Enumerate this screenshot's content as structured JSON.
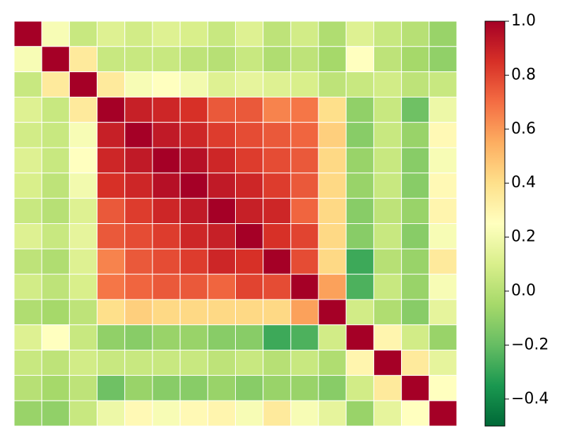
{
  "chart_data": {
    "type": "heatmap",
    "values": [
      [
        1,
        0.22,
        0.05,
        0.12,
        0.08,
        0.12,
        0.1,
        0.05,
        0.12,
        0.02,
        0.08,
        -0.02,
        0.12,
        0.05,
        0.0,
        -0.08
      ],
      [
        0.22,
        1,
        0.35,
        0.05,
        0.05,
        0.05,
        0.02,
        0.0,
        0.05,
        -0.02,
        0.02,
        -0.05,
        0.25,
        0.02,
        -0.05,
        -0.1
      ],
      [
        0.05,
        0.35,
        1,
        0.35,
        0.22,
        0.25,
        0.2,
        0.12,
        0.15,
        0.12,
        0.1,
        0.02,
        0.05,
        0.08,
        0.02,
        0.05
      ],
      [
        0.12,
        0.05,
        0.35,
        1,
        0.9,
        0.88,
        0.85,
        0.75,
        0.75,
        0.65,
        0.68,
        0.4,
        -0.1,
        0.05,
        -0.18,
        0.18
      ],
      [
        0.08,
        0.05,
        0.22,
        0.9,
        1,
        0.92,
        0.88,
        0.82,
        0.78,
        0.75,
        0.72,
        0.45,
        -0.12,
        0.05,
        -0.08,
        0.28
      ],
      [
        0.12,
        0.05,
        0.25,
        0.88,
        0.92,
        1,
        0.95,
        0.88,
        0.82,
        0.78,
        0.75,
        0.42,
        -0.08,
        0.05,
        -0.12,
        0.22
      ],
      [
        0.1,
        0.02,
        0.2,
        0.85,
        0.88,
        0.95,
        1,
        0.92,
        0.88,
        0.82,
        0.75,
        0.42,
        -0.08,
        0.05,
        -0.12,
        0.28
      ],
      [
        0.05,
        0.0,
        0.12,
        0.75,
        0.82,
        0.88,
        0.92,
        1,
        0.9,
        0.88,
        0.72,
        0.42,
        -0.12,
        0.02,
        -0.08,
        0.3
      ],
      [
        0.12,
        0.05,
        0.15,
        0.75,
        0.78,
        0.82,
        0.88,
        0.9,
        1,
        0.85,
        0.8,
        0.42,
        -0.12,
        0.05,
        -0.12,
        0.22
      ],
      [
        0.02,
        -0.02,
        0.12,
        0.65,
        0.75,
        0.78,
        0.82,
        0.88,
        0.85,
        1,
        0.78,
        0.42,
        -0.28,
        0.0,
        -0.08,
        0.35
      ],
      [
        0.08,
        0.02,
        0.1,
        0.68,
        0.72,
        0.75,
        0.75,
        0.72,
        0.8,
        0.78,
        1,
        0.58,
        -0.25,
        0.05,
        -0.08,
        0.22
      ],
      [
        -0.02,
        -0.05,
        0.02,
        0.4,
        0.45,
        0.42,
        0.42,
        0.42,
        0.42,
        0.42,
        0.58,
        1,
        0.08,
        -0.02,
        -0.12,
        0.15
      ],
      [
        0.12,
        0.25,
        0.05,
        -0.1,
        -0.12,
        -0.08,
        -0.08,
        -0.12,
        -0.12,
        -0.28,
        -0.25,
        0.08,
        1,
        0.3,
        0.08,
        -0.08
      ],
      [
        0.05,
        0.02,
        0.08,
        0.05,
        0.05,
        0.05,
        0.05,
        0.02,
        0.05,
        0.0,
        0.05,
        -0.02,
        0.3,
        1,
        0.35,
        0.15
      ],
      [
        0.0,
        -0.05,
        0.02,
        -0.18,
        -0.08,
        -0.12,
        -0.12,
        -0.08,
        -0.12,
        -0.08,
        -0.08,
        -0.12,
        0.08,
        0.35,
        1,
        0.25
      ],
      [
        -0.08,
        -0.1,
        0.05,
        0.18,
        0.28,
        0.22,
        0.28,
        0.3,
        0.22,
        0.35,
        0.22,
        0.15,
        -0.08,
        0.15,
        0.25,
        1
      ]
    ],
    "colormap": [
      "#006837",
      "#1a9850",
      "#66bd63",
      "#a6d96a",
      "#d9ef8b",
      "#ffffbf",
      "#fee08b",
      "#fdae61",
      "#f46d43",
      "#d73027",
      "#a50026"
    ],
    "clim": [
      -0.5,
      1.0
    ],
    "cticks": [
      {
        "value": -0.4,
        "label": "−0.4"
      },
      {
        "value": -0.2,
        "label": "−0.2"
      },
      {
        "value": 0.0,
        "label": "0.0"
      },
      {
        "value": 0.2,
        "label": "0.2"
      },
      {
        "value": 0.4,
        "label": "0.4"
      },
      {
        "value": 0.6,
        "label": "0.6"
      },
      {
        "value": 0.8,
        "label": "0.8"
      },
      {
        "value": 1.0,
        "label": "1.0"
      }
    ]
  }
}
